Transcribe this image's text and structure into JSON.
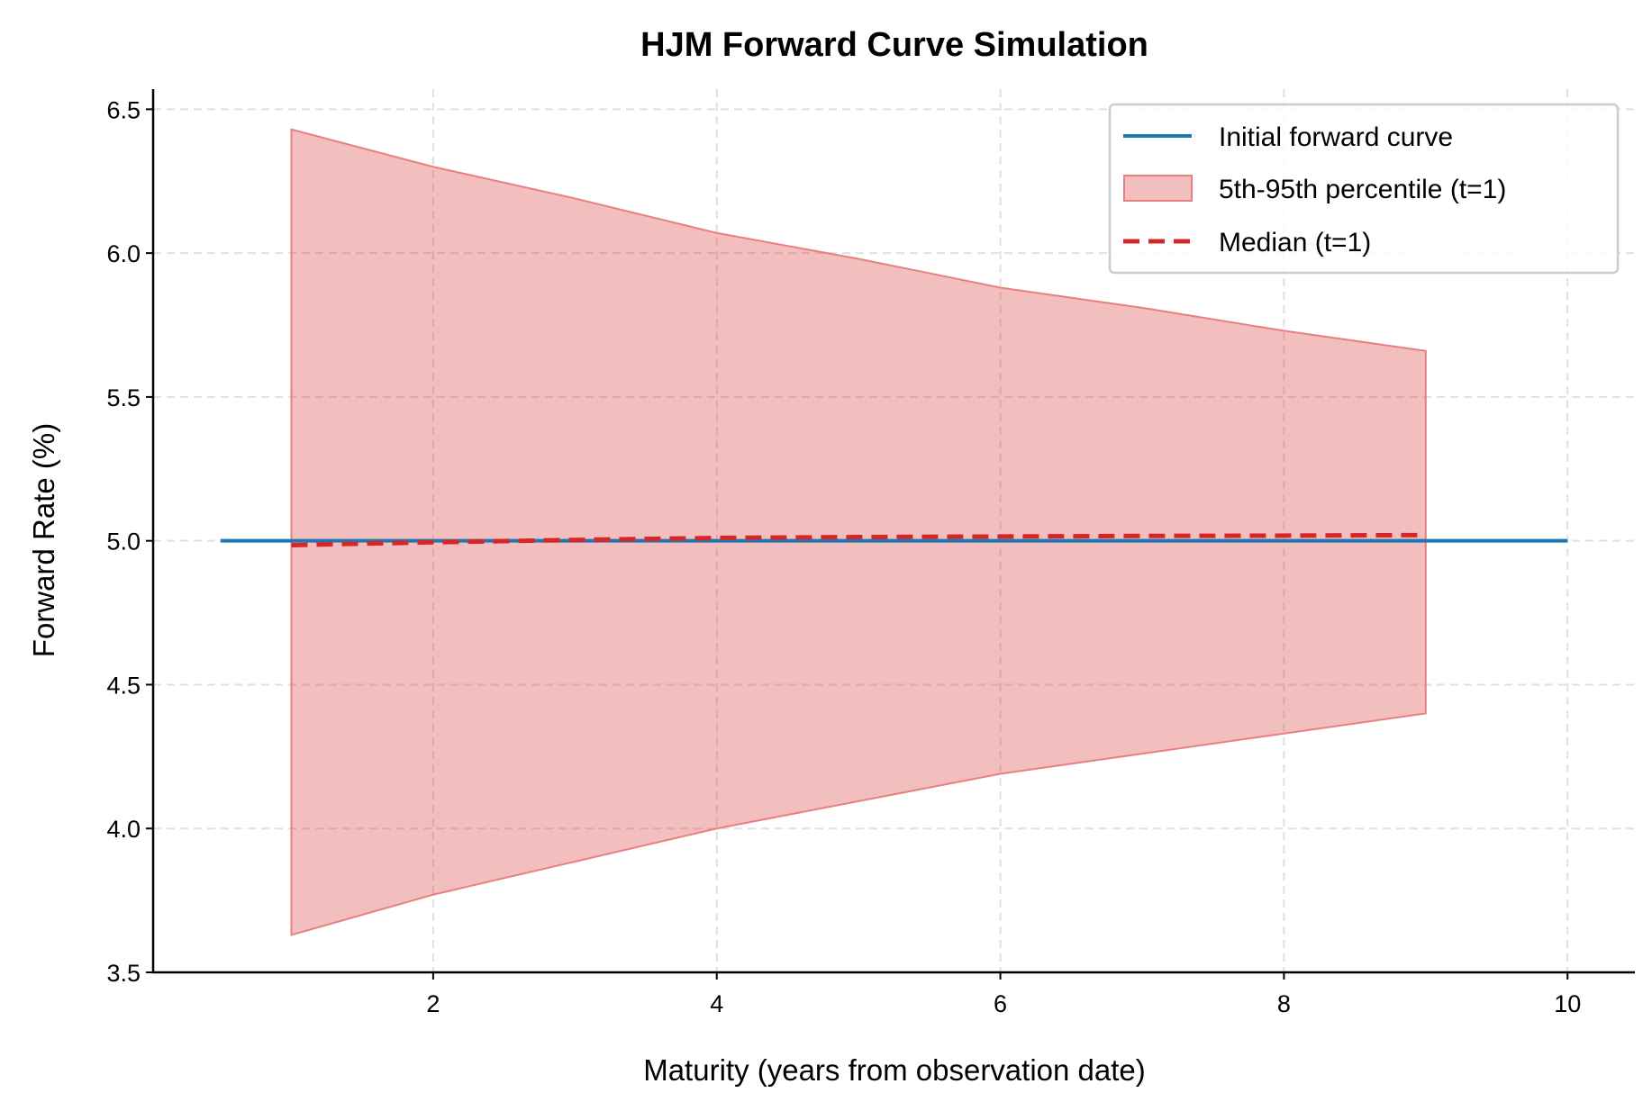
{
  "chart_data": {
    "type": "line",
    "title": "HJM Forward Curve Simulation",
    "xlabel": "Maturity (years from observation date)",
    "ylabel": "Forward Rate (%)",
    "xlim": [
      0.025,
      10.475
    ],
    "ylim": [
      3.5,
      6.57
    ],
    "xticks": [
      2,
      4,
      6,
      8,
      10
    ],
    "xtick_labels": [
      "2",
      "4",
      "6",
      "8",
      "10"
    ],
    "yticks": [
      3.5,
      4.0,
      4.5,
      5.0,
      5.5,
      6.0,
      6.5
    ],
    "ytick_labels": [
      "3.5",
      "4.0",
      "4.5",
      "5.0",
      "5.5",
      "6.0",
      "6.5"
    ],
    "grid": true,
    "legend_position": "top-right",
    "series": [
      {
        "name": "Initial forward curve",
        "kind": "line",
        "color": "#1f77b4",
        "x": [
          0.5,
          10
        ],
        "y": [
          5.0,
          5.0
        ]
      },
      {
        "name": "5th-95th percentile (t=1)",
        "kind": "band",
        "color": "#d62728",
        "x": [
          1,
          2,
          3,
          4,
          5,
          6,
          7,
          8,
          9
        ],
        "lower": [
          3.63,
          3.77,
          3.885,
          4.0,
          4.095,
          4.19,
          4.26,
          4.33,
          4.4
        ],
        "upper": [
          6.43,
          6.3,
          6.19,
          6.07,
          5.98,
          5.88,
          5.81,
          5.73,
          5.66
        ]
      },
      {
        "name": "Median (t=1)",
        "kind": "dashed-line",
        "color": "#d62728",
        "x": [
          1,
          2,
          3,
          4,
          5,
          6,
          7,
          8,
          9
        ],
        "y": [
          4.985,
          4.995,
          5.003,
          5.01,
          5.013,
          5.015,
          5.017,
          5.018,
          5.02
        ]
      }
    ]
  }
}
